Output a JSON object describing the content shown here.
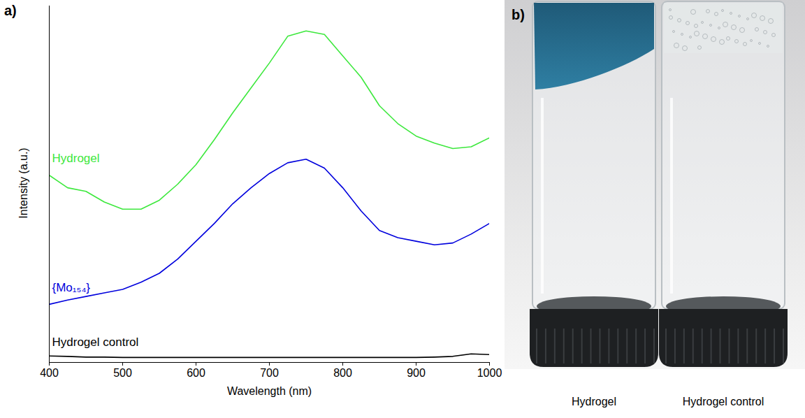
{
  "chart_data": {
    "type": "line",
    "panel_label": "a)",
    "x_label": "Wavelength (nm)",
    "y_label": "Intensity (a.u.)",
    "x": [
      400,
      425,
      450,
      475,
      500,
      525,
      550,
      575,
      600,
      625,
      650,
      675,
      700,
      725,
      750,
      775,
      800,
      825,
      850,
      875,
      900,
      925,
      950,
      975,
      1000
    ],
    "series": [
      {
        "name": "Hydrogel",
        "color": "#3de83d",
        "values": [
          0.525,
          0.49,
          0.48,
          0.45,
          0.43,
          0.43,
          0.455,
          0.5,
          0.555,
          0.625,
          0.7,
          0.77,
          0.84,
          0.915,
          0.93,
          0.92,
          0.86,
          0.8,
          0.72,
          0.67,
          0.635,
          0.615,
          0.6,
          0.605,
          0.63
        ]
      },
      {
        "name": "{Mo₁₅₄}",
        "color": "#0000dd",
        "values": [
          0.163,
          0.175,
          0.185,
          0.195,
          0.205,
          0.225,
          0.25,
          0.29,
          0.34,
          0.39,
          0.445,
          0.49,
          0.53,
          0.56,
          0.57,
          0.545,
          0.49,
          0.425,
          0.37,
          0.35,
          0.34,
          0.33,
          0.335,
          0.36,
          0.39
        ]
      },
      {
        "name": "Hydrogel control",
        "color": "#000000",
        "values": [
          0.018,
          0.017,
          0.015,
          0.015,
          0.014,
          0.014,
          0.014,
          0.014,
          0.014,
          0.014,
          0.014,
          0.014,
          0.014,
          0.014,
          0.014,
          0.014,
          0.014,
          0.014,
          0.014,
          0.014,
          0.014,
          0.015,
          0.017,
          0.024,
          0.022
        ]
      }
    ],
    "xlim": [
      400,
      1000
    ],
    "xticks": [
      400,
      500,
      600,
      700,
      800,
      900,
      1000
    ],
    "ylim": [
      0,
      1
    ],
    "tick_labels": "x",
    "grid": false
  },
  "photo": {
    "panel_label": "b)",
    "labels": [
      "Hydrogel",
      "Hydrogel control"
    ]
  }
}
